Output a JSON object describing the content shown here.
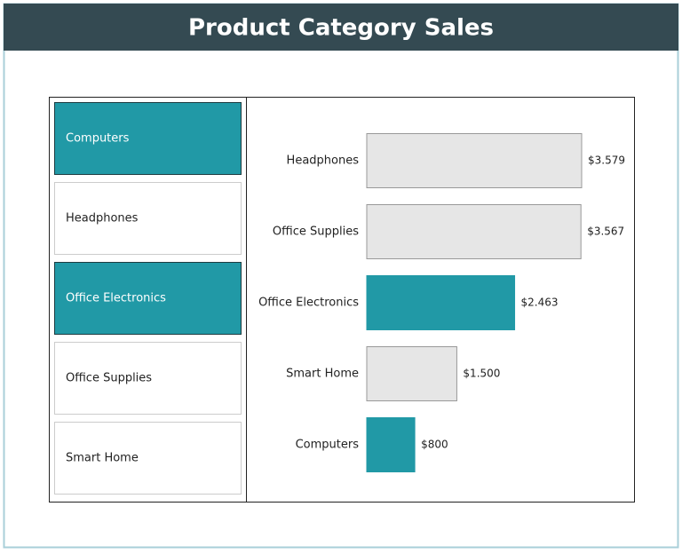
{
  "title": "Product Category Sales",
  "slicer": {
    "items": [
      {
        "label": "Computers",
        "selected": true
      },
      {
        "label": "Headphones",
        "selected": false
      },
      {
        "label": "Office Electronics",
        "selected": true
      },
      {
        "label": "Office Supplies",
        "selected": false
      },
      {
        "label": "Smart Home",
        "selected": false
      }
    ],
    "selected_color": "#2199a6"
  },
  "chart_data": {
    "type": "bar",
    "orientation": "horizontal",
    "categories": [
      "Headphones",
      "Office Supplies",
      "Office Electronics",
      "Smart Home",
      "Computers"
    ],
    "values": [
      3579,
      3567,
      2463,
      1500,
      800
    ],
    "value_labels": [
      "$3.579",
      "$3.567",
      "$2.463",
      "$1.500",
      "$800"
    ],
    "color": "#e6e6e6",
    "highlight_color": "#2199a6"
  }
}
